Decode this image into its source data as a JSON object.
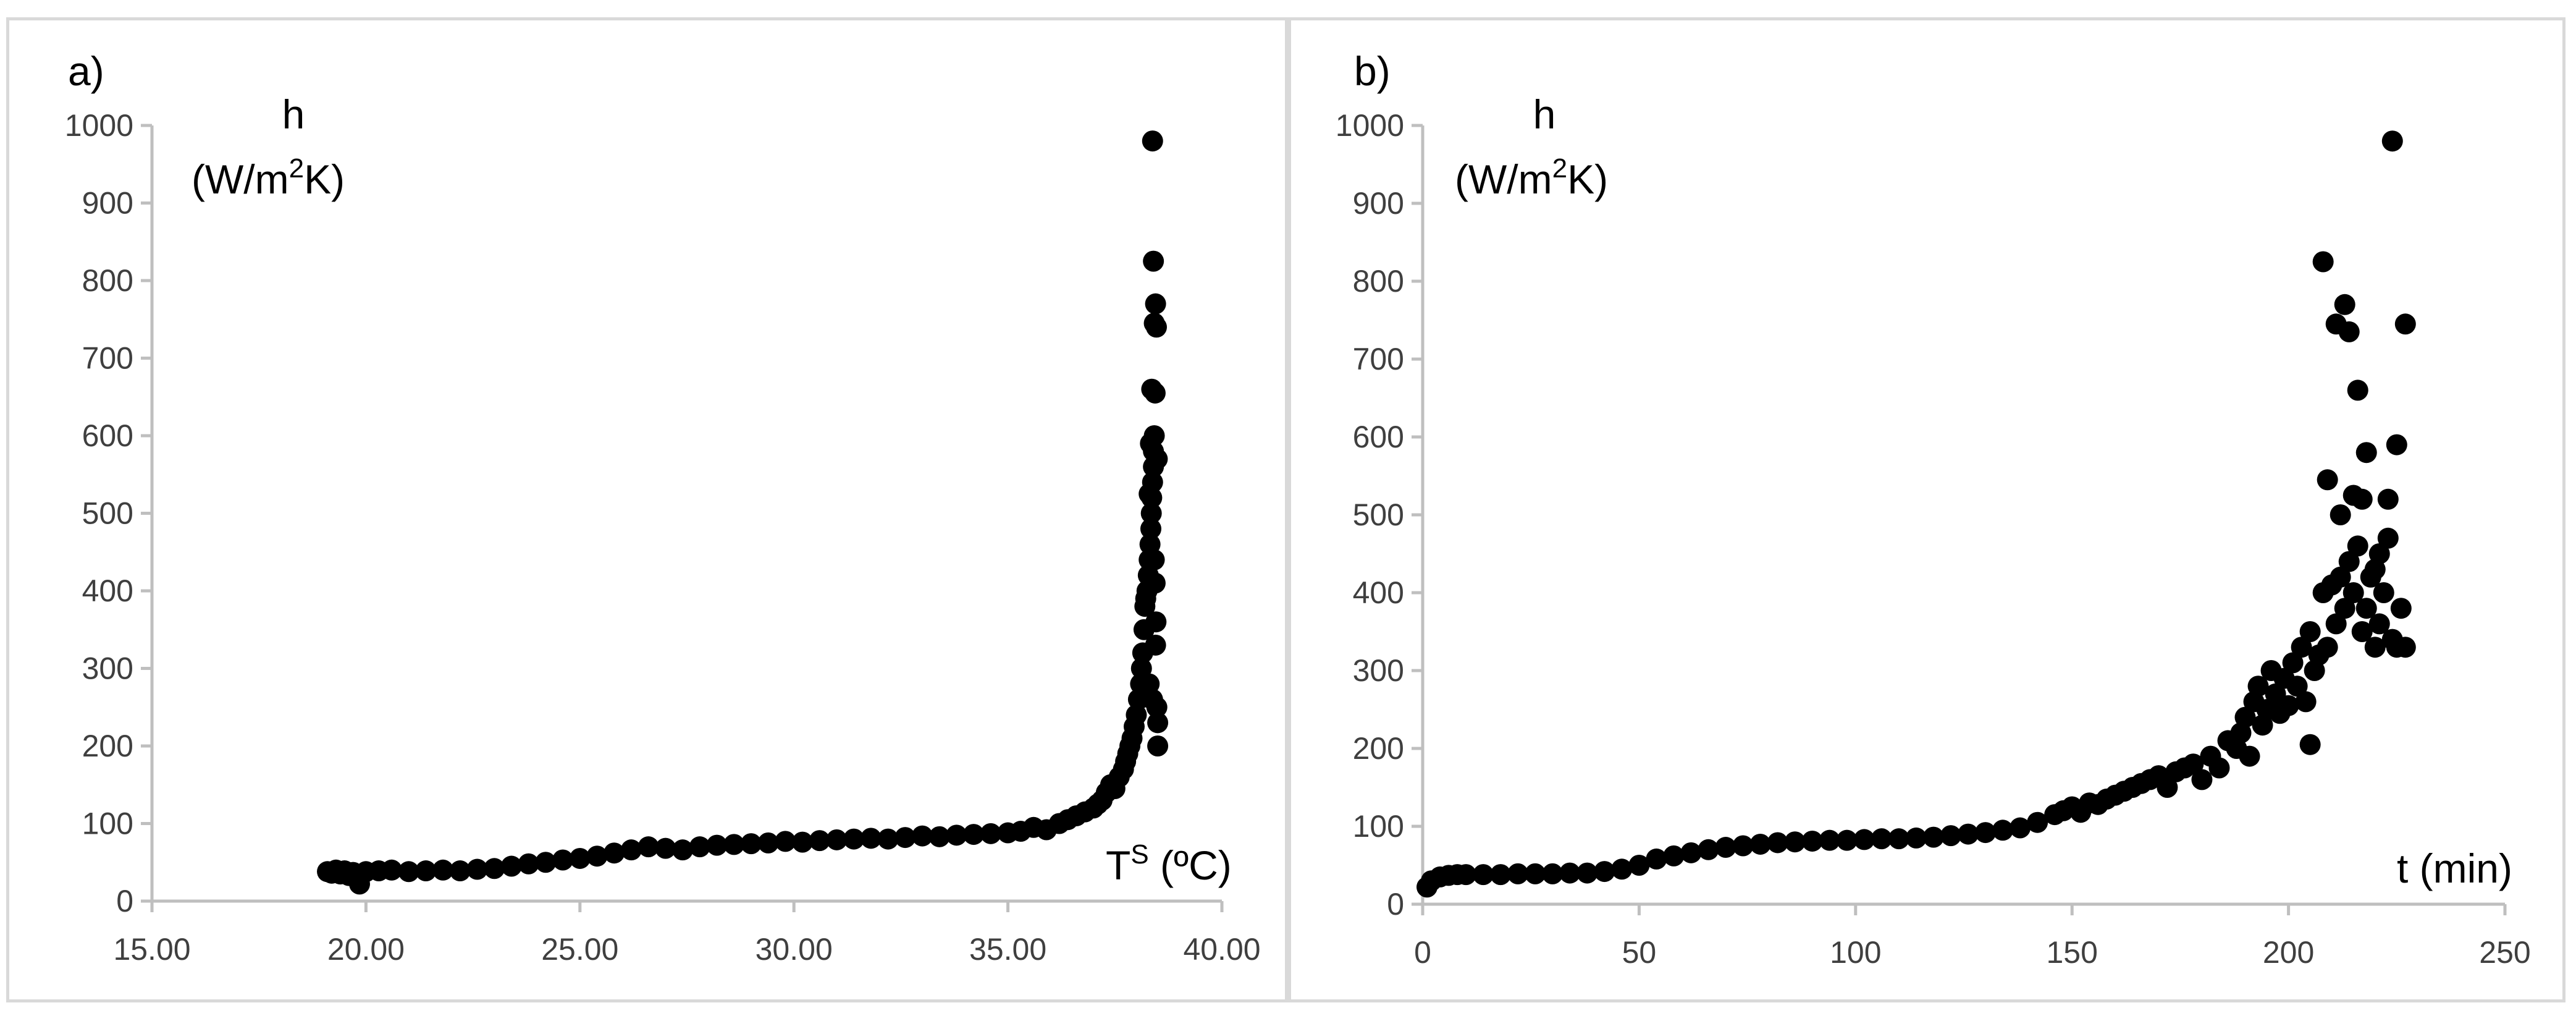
{
  "chart_data": [
    {
      "type": "scatter",
      "panel_label": "a)",
      "title": "",
      "ylabel_line1": "h",
      "ylabel_line2_prefix": "(W/m",
      "ylabel_line2_sup": "2",
      "ylabel_line2_suffix": "K)",
      "xlabel_prefix": "T",
      "xlabel_sup": "S",
      "xlabel_suffix": " (ºC)",
      "xlim": [
        15,
        40
      ],
      "ylim": [
        0,
        1000
      ],
      "xticks": [
        15,
        20,
        25,
        30,
        35,
        40
      ],
      "xtick_labels": [
        "15.00",
        "20.00",
        "25.00",
        "30.00",
        "35.00",
        "40.00"
      ],
      "yticks": [
        0,
        100,
        200,
        300,
        400,
        500,
        600,
        700,
        800,
        900,
        1000
      ],
      "ytick_labels": [
        "0",
        "100",
        "200",
        "300",
        "400",
        "500",
        "600",
        "700",
        "800",
        "900",
        "1000"
      ],
      "legend": "none",
      "grid": false,
      "series": [
        {
          "name": "h",
          "x": [
            19.1,
            19.2,
            19.3,
            19.4,
            19.5,
            19.6,
            19.7,
            19.8,
            19.85,
            20.0,
            20.3,
            20.6,
            21.0,
            21.4,
            21.8,
            22.2,
            22.6,
            23.0,
            23.4,
            23.8,
            24.2,
            24.6,
            25.0,
            25.4,
            25.8,
            26.2,
            26.6,
            27.0,
            27.4,
            27.8,
            28.2,
            28.6,
            29.0,
            29.4,
            29.8,
            30.2,
            30.6,
            31.0,
            31.4,
            31.8,
            32.2,
            32.6,
            33.0,
            33.4,
            33.8,
            34.2,
            34.6,
            35.0,
            35.3,
            35.6,
            35.9,
            36.2,
            36.4,
            36.6,
            36.8,
            37.0,
            37.1,
            37.2,
            37.3,
            37.4,
            37.5,
            37.6,
            37.7,
            37.75,
            37.8,
            37.85,
            37.9,
            37.95,
            38.0,
            38.05,
            38.1,
            38.12,
            38.15,
            38.18,
            38.2,
            38.22,
            38.25,
            38.28,
            38.3,
            38.3,
            38.32,
            38.34,
            38.35,
            38.36,
            38.38,
            38.38,
            38.4,
            38.4,
            38.42,
            38.42,
            38.44,
            38.45,
            38.46,
            38.48,
            38.5,
            38.5,
            38.38,
            38.4,
            38.45,
            38.42,
            38.47,
            38.36,
            38.44,
            38.33,
            38.49,
            38.3
          ],
          "y": [
            38,
            36,
            40,
            35,
            39,
            33,
            37,
            34,
            22,
            38,
            39,
            40,
            38,
            39,
            40,
            39,
            41,
            42,
            45,
            48,
            50,
            53,
            55,
            58,
            62,
            66,
            70,
            68,
            66,
            70,
            72,
            73,
            74,
            75,
            77,
            76,
            78,
            79,
            80,
            81,
            80,
            82,
            84,
            83,
            85,
            86,
            87,
            88,
            90,
            95,
            92,
            100,
            105,
            110,
            115,
            120,
            125,
            130,
            140,
            150,
            145,
            160,
            170,
            180,
            190,
            200,
            210,
            225,
            240,
            260,
            280,
            300,
            320,
            350,
            380,
            390,
            400,
            420,
            280,
            440,
            460,
            480,
            500,
            520,
            540,
            260,
            560,
            580,
            440,
            600,
            410,
            330,
            360,
            250,
            230,
            200,
            980,
            825,
            770,
            745,
            740,
            660,
            655,
            590,
            570,
            525
          ]
        }
      ]
    },
    {
      "type": "scatter",
      "panel_label": "b)",
      "title": "",
      "ylabel_line1": "h",
      "ylabel_line2_prefix": "(W/m",
      "ylabel_line2_sup": "2",
      "ylabel_line2_suffix": "K)",
      "xlabel_prefix": "t (min)",
      "xlabel_sup": "",
      "xlabel_suffix": "",
      "xlim": [
        0,
        250
      ],
      "ylim": [
        0,
        1000
      ],
      "xticks": [
        0,
        50,
        100,
        150,
        200,
        250
      ],
      "xtick_labels": [
        "0",
        "50",
        "100",
        "150",
        "200",
        "250"
      ],
      "yticks": [
        0,
        100,
        200,
        300,
        400,
        500,
        600,
        700,
        800,
        900,
        1000
      ],
      "ytick_labels": [
        "0",
        "100",
        "200",
        "300",
        "400",
        "500",
        "600",
        "700",
        "800",
        "900",
        "1000"
      ],
      "legend": "none",
      "grid": false,
      "series": [
        {
          "name": "h",
          "x": [
            1,
            2,
            4,
            6,
            8,
            10,
            14,
            18,
            22,
            26,
            30,
            34,
            38,
            42,
            46,
            50,
            54,
            58,
            62,
            66,
            70,
            74,
            78,
            82,
            86,
            90,
            94,
            98,
            102,
            106,
            110,
            114,
            118,
            122,
            126,
            130,
            134,
            138,
            142,
            146,
            148,
            150,
            152,
            154,
            156,
            158,
            160,
            162,
            164,
            166,
            168,
            170,
            172,
            174,
            176,
            178,
            180,
            182,
            184,
            186,
            188,
            189,
            190,
            191,
            192,
            193,
            194,
            195,
            196,
            197,
            198,
            199,
            200,
            201,
            202,
            203,
            204,
            205,
            206,
            207,
            208,
            209,
            210,
            211,
            212,
            213,
            214,
            215,
            216,
            217,
            218,
            219,
            220,
            221,
            222,
            223,
            224,
            225,
            226,
            227,
            208,
            211,
            213,
            214,
            216,
            218,
            224,
            227,
            209,
            212,
            215,
            220,
            221,
            223,
            225,
            217,
            205
          ],
          "y": [
            22,
            30,
            35,
            37,
            38,
            38,
            38,
            38,
            39,
            39,
            39,
            40,
            40,
            42,
            45,
            50,
            58,
            62,
            66,
            70,
            73,
            75,
            77,
            79,
            80,
            81,
            82,
            82,
            83,
            84,
            84,
            85,
            86,
            88,
            90,
            92,
            95,
            98,
            105,
            115,
            120,
            125,
            118,
            130,
            128,
            135,
            140,
            145,
            150,
            155,
            160,
            165,
            150,
            170,
            175,
            180,
            160,
            190,
            175,
            210,
            200,
            220,
            240,
            190,
            260,
            280,
            230,
            250,
            300,
            270,
            245,
            290,
            255,
            310,
            280,
            330,
            260,
            350,
            300,
            320,
            400,
            330,
            410,
            360,
            420,
            380,
            440,
            400,
            460,
            350,
            380,
            420,
            330,
            450,
            400,
            470,
            340,
            330,
            380,
            330,
            825,
            745,
            770,
            735,
            660,
            580,
            980,
            745,
            545,
            500,
            525,
            430,
            360,
            520,
            590,
            520,
            205
          ]
        }
      ]
    }
  ]
}
